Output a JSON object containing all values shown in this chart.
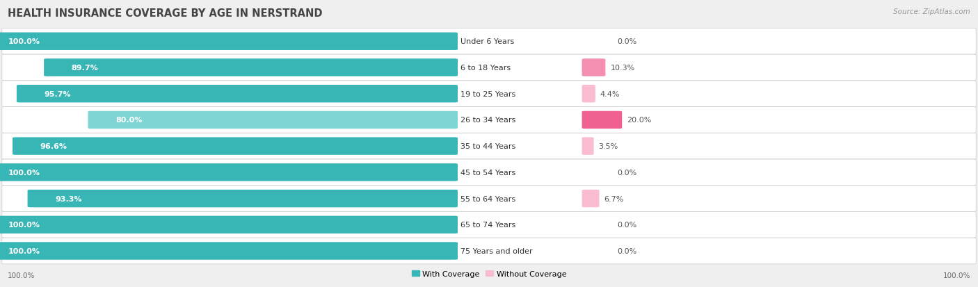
{
  "title": "HEALTH INSURANCE COVERAGE BY AGE IN NERSTRAND",
  "source": "Source: ZipAtlas.com",
  "categories": [
    "Under 6 Years",
    "6 to 18 Years",
    "19 to 25 Years",
    "26 to 34 Years",
    "35 to 44 Years",
    "45 to 54 Years",
    "55 to 64 Years",
    "65 to 74 Years",
    "75 Years and older"
  ],
  "with_coverage": [
    100.0,
    89.7,
    95.7,
    80.0,
    96.6,
    100.0,
    93.3,
    100.0,
    100.0
  ],
  "without_coverage": [
    0.0,
    10.3,
    4.4,
    20.0,
    3.5,
    0.0,
    6.7,
    0.0,
    0.0
  ],
  "color_with": "#38b6b6",
  "color_with_light": "#7fd4d4",
  "color_without_light": "#f9bcd0",
  "color_without_dark": "#f06090",
  "bg_color": "#efefef",
  "row_bg": "#ffffff",
  "title_fontsize": 10.5,
  "source_fontsize": 7.5,
  "bar_label_fontsize": 8,
  "cat_label_fontsize": 8,
  "value_label_fontsize": 8,
  "legend_fontsize": 8,
  "axis_label_fontsize": 7.5,
  "without_coverage_thresholds": [
    10.0,
    15.0
  ],
  "color_without_levels": [
    "#f9bcd0",
    "#f48fb1",
    "#f06090"
  ]
}
